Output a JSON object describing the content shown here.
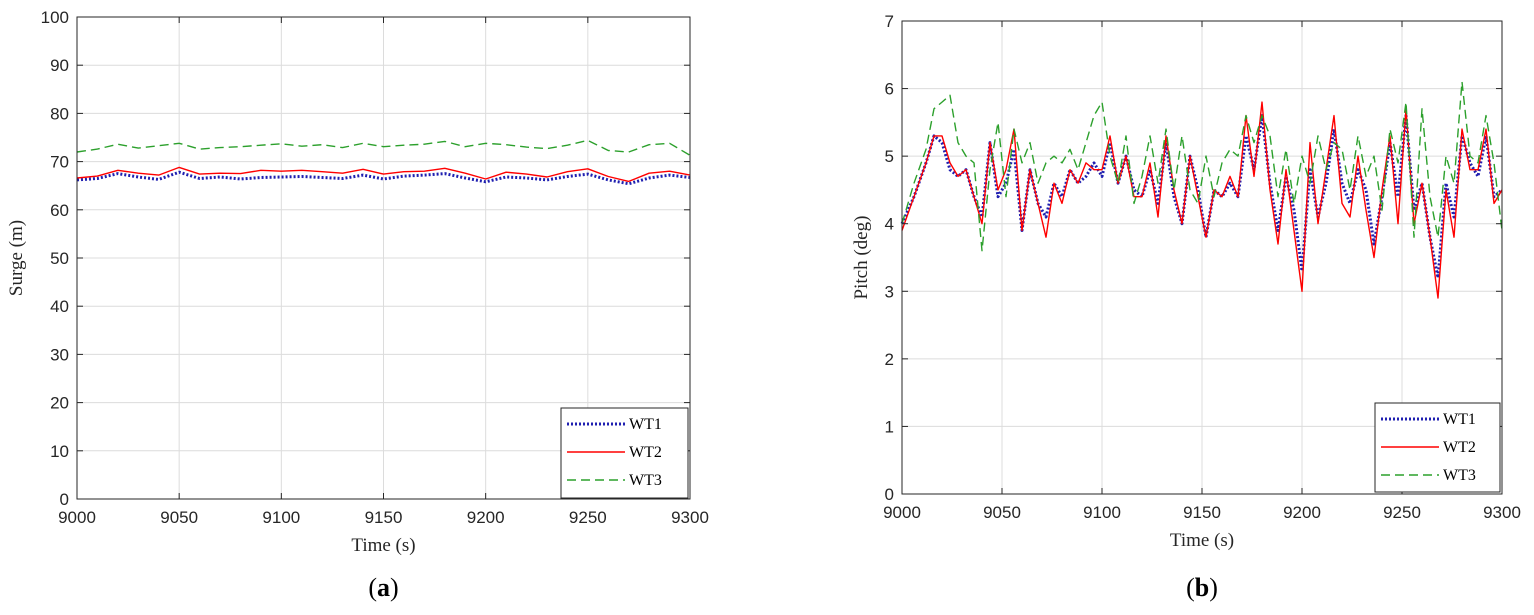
{
  "chart_data": [
    {
      "type": "line",
      "panel": "a",
      "panel_label": {
        "open": "(",
        "letter": "a",
        "close": ")"
      },
      "xlabel": "Time (s)",
      "ylabel": "Surge (m)",
      "xlim": [
        9000,
        9300
      ],
      "ylim": [
        0,
        100
      ],
      "xticks": [
        9000,
        9050,
        9100,
        9150,
        9200,
        9250,
        9300
      ],
      "yticks": [
        0,
        10,
        20,
        30,
        40,
        50,
        60,
        70,
        80,
        90,
        100
      ],
      "grid": true,
      "legend": "bottom-right",
      "x": [
        9000,
        9010,
        9020,
        9030,
        9040,
        9050,
        9060,
        9070,
        9080,
        9090,
        9100,
        9110,
        9120,
        9130,
        9140,
        9150,
        9160,
        9170,
        9180,
        9190,
        9200,
        9210,
        9220,
        9230,
        9240,
        9250,
        9260,
        9270,
        9280,
        9290,
        9300
      ],
      "series": [
        {
          "name": "WT1",
          "color": "#1f1fb0",
          "dash": "dot",
          "values": [
            66.2,
            66.5,
            67.5,
            66.8,
            66.3,
            67.8,
            66.5,
            66.8,
            66.4,
            66.7,
            66.8,
            66.9,
            66.7,
            66.5,
            67.2,
            66.4,
            67.0,
            67.2,
            67.5,
            66.6,
            65.8,
            66.8,
            66.6,
            66.2,
            66.9,
            67.4,
            66.2,
            65.4,
            66.6,
            67.2,
            66.7
          ]
        },
        {
          "name": "WT2",
          "color": "#ff0000",
          "dash": "solid",
          "values": [
            66.6,
            67.0,
            68.2,
            67.6,
            67.2,
            68.8,
            67.4,
            67.6,
            67.5,
            68.2,
            68.0,
            68.2,
            67.9,
            67.6,
            68.4,
            67.4,
            67.9,
            68.0,
            68.6,
            67.6,
            66.4,
            67.8,
            67.4,
            66.8,
            67.9,
            68.5,
            66.9,
            65.9,
            67.6,
            68.0,
            67.2
          ]
        },
        {
          "name": "WT3",
          "color": "#2ca02c",
          "dash": "dash",
          "values": [
            72.0,
            72.6,
            73.6,
            72.8,
            73.3,
            73.8,
            72.6,
            72.9,
            73.1,
            73.4,
            73.7,
            73.2,
            73.5,
            72.9,
            73.8,
            73.1,
            73.4,
            73.6,
            74.2,
            73.1,
            73.8,
            73.5,
            73.0,
            72.7,
            73.4,
            74.4,
            72.3,
            72.0,
            73.5,
            73.8,
            71.3
          ]
        }
      ]
    },
    {
      "type": "line",
      "panel": "b",
      "panel_label": {
        "open": "(",
        "letter": "b",
        "close": ")"
      },
      "xlabel": "Time (s)",
      "ylabel": "Pitch (deg)",
      "xlim": [
        9000,
        9300
      ],
      "ylim": [
        0,
        7
      ],
      "xticks": [
        9000,
        9050,
        9100,
        9150,
        9200,
        9250,
        9300
      ],
      "yticks": [
        0,
        1,
        2,
        3,
        4,
        5,
        6,
        7
      ],
      "grid": true,
      "legend": "bottom-right",
      "x": [
        9000,
        9006,
        9012,
        9016,
        9020,
        9024,
        9028,
        9032,
        9036,
        9040,
        9044,
        9048,
        9052,
        9056,
        9060,
        9064,
        9068,
        9072,
        9076,
        9080,
        9084,
        9088,
        9092,
        9096,
        9100,
        9104,
        9108,
        9112,
        9116,
        9120,
        9124,
        9128,
        9132,
        9136,
        9140,
        9144,
        9148,
        9152,
        9156,
        9160,
        9164,
        9168,
        9172,
        9176,
        9180,
        9184,
        9188,
        9192,
        9196,
        9200,
        9204,
        9208,
        9212,
        9216,
        9220,
        9224,
        9228,
        9232,
        9236,
        9240,
        9244,
        9248,
        9252,
        9256,
        9260,
        9264,
        9268,
        9272,
        9276,
        9280,
        9284,
        9288,
        9292,
        9296,
        9300
      ],
      "series": [
        {
          "name": "WT1",
          "color": "#1f1fb0",
          "dash": "dot",
          "values": [
            4.0,
            4.4,
            4.9,
            5.3,
            5.2,
            4.8,
            4.7,
            4.8,
            4.4,
            4.1,
            5.2,
            4.4,
            4.6,
            5.1,
            3.9,
            4.8,
            4.3,
            4.1,
            4.6,
            4.4,
            4.8,
            4.6,
            4.7,
            4.9,
            4.7,
            5.2,
            4.6,
            5.0,
            4.5,
            4.4,
            4.8,
            4.3,
            5.2,
            4.4,
            4.0,
            5.0,
            4.5,
            3.8,
            4.5,
            4.4,
            4.6,
            4.4,
            5.3,
            4.8,
            5.6,
            4.6,
            3.9,
            4.7,
            4.2,
            3.3,
            4.8,
            4.1,
            4.6,
            5.4,
            4.6,
            4.3,
            4.8,
            4.5,
            3.7,
            4.4,
            5.2,
            4.4,
            5.6,
            4.2,
            4.6,
            3.8,
            3.2,
            4.6,
            4.1,
            5.3,
            4.9,
            4.7,
            5.3,
            4.4,
            4.5
          ]
        },
        {
          "name": "WT2",
          "color": "#ff0000",
          "dash": "solid",
          "values": [
            3.9,
            4.4,
            4.9,
            5.3,
            5.3,
            4.9,
            4.7,
            4.8,
            4.4,
            4.0,
            5.2,
            4.5,
            4.8,
            5.4,
            3.9,
            4.8,
            4.3,
            3.8,
            4.6,
            4.3,
            4.8,
            4.6,
            4.9,
            4.8,
            4.8,
            5.3,
            4.6,
            5.0,
            4.4,
            4.4,
            4.9,
            4.1,
            5.3,
            4.5,
            4.0,
            5.0,
            4.4,
            3.8,
            4.5,
            4.4,
            4.7,
            4.4,
            5.6,
            4.7,
            5.8,
            4.5,
            3.7,
            4.8,
            3.9,
            3.0,
            5.2,
            4.0,
            4.8,
            5.6,
            4.3,
            4.1,
            5.0,
            4.2,
            3.5,
            4.5,
            5.3,
            4.0,
            5.7,
            4.0,
            4.6,
            3.8,
            2.9,
            4.5,
            3.8,
            5.4,
            4.8,
            4.8,
            5.4,
            4.3,
            4.5
          ]
        },
        {
          "name": "WT3",
          "color": "#2ca02c",
          "dash": "dash",
          "values": [
            4.0,
            4.6,
            5.1,
            5.7,
            5.8,
            5.9,
            5.2,
            5.0,
            4.9,
            3.6,
            4.8,
            5.5,
            4.4,
            5.4,
            4.9,
            5.2,
            4.6,
            4.9,
            5.0,
            4.9,
            5.1,
            4.8,
            5.2,
            5.6,
            5.8,
            5.0,
            4.6,
            5.3,
            4.3,
            4.7,
            5.3,
            4.6,
            5.4,
            4.5,
            5.3,
            4.5,
            4.3,
            5.0,
            4.4,
            4.9,
            5.1,
            5.0,
            5.6,
            5.2,
            5.6,
            5.3,
            4.4,
            5.1,
            4.3,
            5.0,
            4.6,
            5.3,
            4.8,
            5.2,
            5.1,
            4.5,
            5.3,
            4.7,
            5.0,
            4.2,
            5.4,
            4.9,
            5.8,
            3.8,
            5.7,
            4.4,
            3.8,
            5.0,
            4.6,
            6.1,
            5.0,
            4.9,
            5.6,
            4.9,
            3.9
          ]
        }
      ]
    }
  ]
}
